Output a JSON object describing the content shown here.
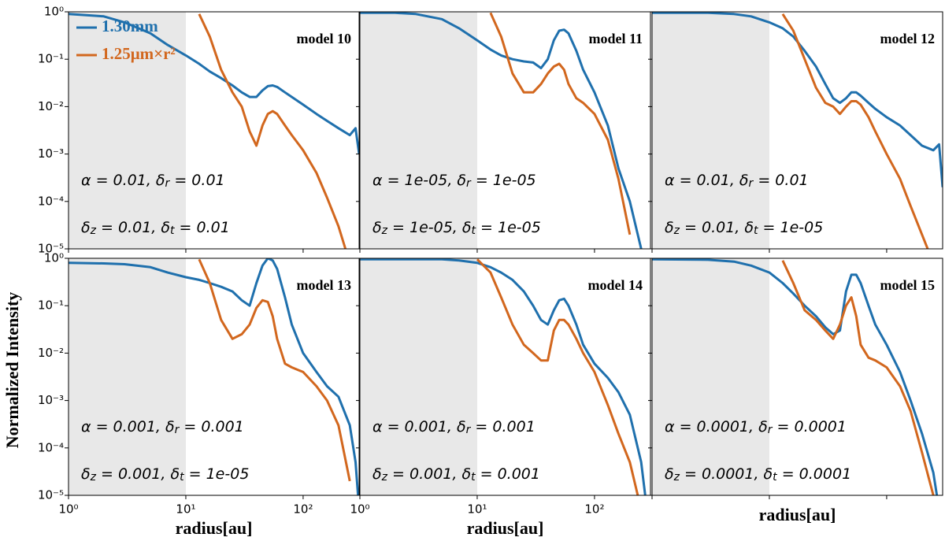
{
  "figure": {
    "ylabel": "Normalized Intensity"
  },
  "chart_data": [
    {
      "type": "line",
      "title": "model 10",
      "xscale": "log",
      "yscale": "log",
      "xlim": [
        1,
        300
      ],
      "ylim": [
        1e-05,
        1
      ],
      "shaded_region": [
        1,
        10
      ],
      "legend": "upper left",
      "xticks": [
        1,
        10,
        100
      ],
      "yticks": [
        {
          "value": 1,
          "label": "10⁰"
        },
        {
          "value": 0.1,
          "label": "10⁻¹"
        },
        {
          "value": 0.01,
          "label": "10⁻²"
        },
        {
          "value": 0.001,
          "label": "10⁻³"
        },
        {
          "value": 0.0001,
          "label": "10⁻⁴"
        },
        {
          "value": 1e-05,
          "label": "10⁻⁵"
        }
      ],
      "x": [
        1,
        2,
        3,
        5,
        7,
        10,
        13,
        16,
        20,
        25,
        30,
        35,
        40,
        45,
        50,
        55,
        60,
        70,
        80,
        100,
        130,
        160,
        200,
        250,
        280,
        300
      ],
      "series": [
        {
          "name": "1.30mm",
          "color": "#1f70ad",
          "values": [
            0.9,
            0.8,
            0.6,
            0.35,
            0.2,
            0.12,
            0.08,
            0.055,
            0.04,
            0.028,
            0.02,
            0.016,
            0.016,
            0.022,
            0.027,
            0.028,
            0.026,
            0.02,
            0.016,
            0.011,
            0.007,
            0.005,
            0.0035,
            0.0025,
            0.0035,
            0.001
          ]
        },
        {
          "name": "1.25μm×r²",
          "color": "#d2671e",
          "values": [
            null,
            null,
            null,
            null,
            null,
            null,
            0.9,
            0.3,
            0.06,
            0.02,
            0.01,
            0.003,
            0.0015,
            0.004,
            0.007,
            0.008,
            0.007,
            0.004,
            0.0025,
            0.0012,
            0.0004,
            0.00012,
            3e-05,
            5e-06,
            null,
            null
          ]
        }
      ],
      "annotations": [
        [
          {
            "text": "α = 0.01, δ"
          },
          {
            "sub": "r"
          },
          {
            "text": " = 0.01"
          }
        ],
        [
          {
            "text": "δ"
          },
          {
            "sub": "z"
          },
          {
            "text": " = 0.01, δ"
          },
          {
            "sub": "t"
          },
          {
            "text": " = 0.01"
          }
        ]
      ]
    },
    {
      "type": "line",
      "title": "model 11",
      "xscale": "log",
      "yscale": "log",
      "xlim": [
        1,
        300
      ],
      "ylim": [
        1e-05,
        1
      ],
      "shaded_region": [
        1,
        10
      ],
      "xticks": [
        1,
        10,
        100
      ],
      "yticks": [
        1,
        0.1,
        0.01,
        0.001,
        0.0001,
        1e-05
      ],
      "x": [
        1,
        2,
        3,
        5,
        7,
        10,
        13,
        16,
        20,
        25,
        30,
        35,
        40,
        45,
        50,
        55,
        60,
        70,
        80,
        100,
        130,
        160,
        200,
        250,
        280,
        300
      ],
      "series": [
        {
          "color": "#1f70ad",
          "values": [
            0.95,
            0.95,
            0.9,
            0.7,
            0.45,
            0.25,
            0.16,
            0.12,
            0.1,
            0.09,
            0.085,
            0.065,
            0.1,
            0.25,
            0.4,
            0.42,
            0.35,
            0.15,
            0.06,
            0.02,
            0.004,
            0.0005,
            0.0001,
            1e-05,
            null,
            null
          ]
        },
        {
          "color": "#d2671e",
          "values": [
            null,
            null,
            null,
            null,
            null,
            null,
            0.95,
            0.3,
            0.05,
            0.02,
            0.02,
            0.03,
            0.05,
            0.07,
            0.08,
            0.06,
            0.03,
            0.015,
            0.012,
            0.007,
            0.002,
            0.0003,
            2e-05,
            null,
            null,
            null
          ]
        }
      ],
      "annotations": [
        [
          {
            "text": "α = 1e-05, δ"
          },
          {
            "sub": "r"
          },
          {
            "text": " = 1e-05"
          }
        ],
        [
          {
            "text": "δ"
          },
          {
            "sub": "z"
          },
          {
            "text": " = 1e-05, δ"
          },
          {
            "sub": "t"
          },
          {
            "text": " = 1e-05"
          }
        ]
      ]
    },
    {
      "type": "line",
      "title": "model 12",
      "xscale": "log",
      "yscale": "log",
      "xlim": [
        1,
        300
      ],
      "ylim": [
        1e-05,
        1
      ],
      "shaded_region": [
        1,
        10
      ],
      "xticks": [
        1,
        10,
        100
      ],
      "yticks": [
        1,
        0.1,
        0.01,
        0.001,
        0.0001,
        1e-05
      ],
      "x": [
        1,
        2,
        3,
        5,
        7,
        10,
        13,
        16,
        20,
        25,
        30,
        35,
        40,
        45,
        50,
        55,
        60,
        70,
        80,
        100,
        130,
        160,
        200,
        250,
        280,
        300
      ],
      "series": [
        {
          "color": "#1f70ad",
          "values": [
            0.95,
            0.95,
            0.95,
            0.9,
            0.8,
            0.6,
            0.45,
            0.3,
            0.15,
            0.07,
            0.03,
            0.015,
            0.012,
            0.015,
            0.02,
            0.02,
            0.017,
            0.012,
            0.009,
            0.006,
            0.004,
            0.0025,
            0.0015,
            0.0012,
            0.0016,
            0.0002
          ]
        },
        {
          "color": "#d2671e",
          "values": [
            null,
            null,
            null,
            null,
            null,
            null,
            0.9,
            0.4,
            0.1,
            0.025,
            0.012,
            0.01,
            0.007,
            0.01,
            0.013,
            0.013,
            0.011,
            0.006,
            0.003,
            0.001,
            0.0003,
            8e-05,
            2e-05,
            5e-06,
            null,
            null
          ]
        }
      ],
      "annotations": [
        [
          {
            "text": "α = 0.01, δ"
          },
          {
            "sub": "r"
          },
          {
            "text": " = 0.01"
          }
        ],
        [
          {
            "text": "δ"
          },
          {
            "sub": "z"
          },
          {
            "text": " = 0.01, δ"
          },
          {
            "sub": "t"
          },
          {
            "text": " = 1e-05"
          }
        ]
      ]
    },
    {
      "type": "line",
      "title": "model 13",
      "xscale": "log",
      "yscale": "log",
      "xlim": [
        1,
        300
      ],
      "ylim": [
        1e-05,
        1
      ],
      "shaded_region": [
        1,
        10
      ],
      "xlabel": "radius[au]",
      "xticks": [
        {
          "value": 1,
          "label": "10⁰"
        },
        {
          "value": 10,
          "label": "10¹"
        },
        {
          "value": 100,
          "label": "10²"
        }
      ],
      "yticks": [
        {
          "value": 1,
          "label": "10⁰"
        },
        {
          "value": 0.1,
          "label": "10⁻¹"
        },
        {
          "value": 0.01,
          "label": "10⁻²"
        },
        {
          "value": 0.001,
          "label": "10⁻³"
        },
        {
          "value": 0.0001,
          "label": "10⁻⁴"
        },
        {
          "value": 1e-05,
          "label": "10⁻⁵"
        }
      ],
      "x": [
        1,
        2,
        3,
        5,
        7,
        10,
        13,
        16,
        20,
        25,
        30,
        35,
        40,
        45,
        50,
        55,
        60,
        70,
        80,
        100,
        130,
        160,
        200,
        250,
        280,
        300
      ],
      "series": [
        {
          "color": "#1f70ad",
          "values": [
            0.8,
            0.78,
            0.75,
            0.65,
            0.5,
            0.4,
            0.35,
            0.3,
            0.25,
            0.2,
            0.13,
            0.1,
            0.3,
            0.7,
            1,
            0.9,
            0.6,
            0.15,
            0.04,
            0.01,
            0.004,
            0.002,
            0.0012,
            0.0003,
            5e-05,
            5e-06
          ]
        },
        {
          "color": "#d2671e",
          "values": [
            null,
            null,
            null,
            null,
            null,
            null,
            0.95,
            0.3,
            0.05,
            0.02,
            0.025,
            0.04,
            0.09,
            0.13,
            0.12,
            0.06,
            0.02,
            0.006,
            0.005,
            0.004,
            0.002,
            0.001,
            0.0003,
            2e-05,
            null,
            null
          ]
        }
      ],
      "annotations": [
        [
          {
            "text": "α = 0.001, δ"
          },
          {
            "sub": "r"
          },
          {
            "text": " = 0.001"
          }
        ],
        [
          {
            "text": "δ"
          },
          {
            "sub": "z"
          },
          {
            "text": " = 0.001, δ"
          },
          {
            "sub": "t"
          },
          {
            "text": " = 1e-05"
          }
        ]
      ]
    },
    {
      "type": "line",
      "title": "model 14",
      "xscale": "log",
      "yscale": "log",
      "xlim": [
        1,
        300
      ],
      "ylim": [
        1e-05,
        1
      ],
      "shaded_region": [
        1,
        10
      ],
      "xlabel": "radius[au]",
      "xticks": [
        {
          "value": 1,
          "label": "10⁰"
        },
        {
          "value": 10,
          "label": "10¹"
        },
        {
          "value": 100,
          "label": "10²"
        }
      ],
      "yticks": [
        1,
        0.1,
        0.01,
        0.001,
        0.0001,
        1e-05
      ],
      "x": [
        1,
        2,
        3,
        5,
        7,
        10,
        13,
        16,
        20,
        25,
        30,
        35,
        40,
        45,
        50,
        55,
        60,
        70,
        80,
        100,
        130,
        160,
        200,
        250,
        280,
        300
      ],
      "series": [
        {
          "color": "#1f70ad",
          "values": [
            0.95,
            0.95,
            0.95,
            0.95,
            0.9,
            0.8,
            0.65,
            0.5,
            0.35,
            0.2,
            0.1,
            0.05,
            0.04,
            0.08,
            0.13,
            0.14,
            0.1,
            0.04,
            0.015,
            0.006,
            0.003,
            0.0015,
            0.0005,
            5e-05,
            5e-06,
            null
          ]
        },
        {
          "color": "#d2671e",
          "values": [
            null,
            null,
            null,
            null,
            null,
            0.95,
            0.5,
            0.15,
            0.04,
            0.015,
            0.01,
            0.007,
            0.007,
            0.03,
            0.05,
            0.05,
            0.04,
            0.02,
            0.01,
            0.004,
            0.0008,
            0.0002,
            5e-05,
            5e-06,
            null,
            null
          ]
        }
      ],
      "annotations": [
        [
          {
            "text": "α = 0.001, δ"
          },
          {
            "sub": "r"
          },
          {
            "text": " = 0.001"
          }
        ],
        [
          {
            "text": "δ"
          },
          {
            "sub": "z"
          },
          {
            "text": " = 0.001, δ"
          },
          {
            "sub": "t"
          },
          {
            "text": " = 0.001"
          }
        ]
      ]
    },
    {
      "type": "line",
      "title": "model 15",
      "xscale": "log",
      "yscale": "log",
      "xlim": [
        1,
        300
      ],
      "ylim": [
        1e-05,
        1
      ],
      "shaded_region": [
        1,
        10
      ],
      "xlabel": "radius[au]",
      "xticks": [
        1,
        10,
        100
      ],
      "yticks": [
        1,
        0.1,
        0.01,
        0.001,
        0.0001,
        1e-05
      ],
      "x": [
        1,
        2,
        3,
        5,
        7,
        10,
        13,
        16,
        20,
        25,
        30,
        35,
        40,
        45,
        50,
        55,
        60,
        70,
        80,
        100,
        130,
        160,
        200,
        250,
        280,
        300
      ],
      "series": [
        {
          "color": "#1f70ad",
          "values": [
            0.95,
            0.94,
            0.93,
            0.85,
            0.7,
            0.5,
            0.3,
            0.18,
            0.1,
            0.06,
            0.035,
            0.025,
            0.03,
            0.2,
            0.45,
            0.45,
            0.3,
            0.1,
            0.04,
            0.015,
            0.004,
            0.001,
            0.0002,
            3e-05,
            5e-06,
            null
          ]
        },
        {
          "color": "#d2671e",
          "values": [
            null,
            null,
            null,
            null,
            null,
            null,
            0.9,
            0.3,
            0.08,
            0.05,
            0.03,
            0.02,
            0.04,
            0.1,
            0.15,
            0.06,
            0.015,
            0.008,
            0.007,
            0.005,
            0.002,
            0.0006,
            8e-05,
            1e-05,
            null,
            null
          ]
        }
      ],
      "annotations": [
        [
          {
            "text": "α = 0.0001, δ"
          },
          {
            "sub": "r"
          },
          {
            "text": " = 0.0001"
          }
        ],
        [
          {
            "text": "δ"
          },
          {
            "sub": "z"
          },
          {
            "text": " = 0.0001, δ"
          },
          {
            "sub": "t"
          },
          {
            "text": " = 0.0001"
          }
        ]
      ]
    }
  ]
}
